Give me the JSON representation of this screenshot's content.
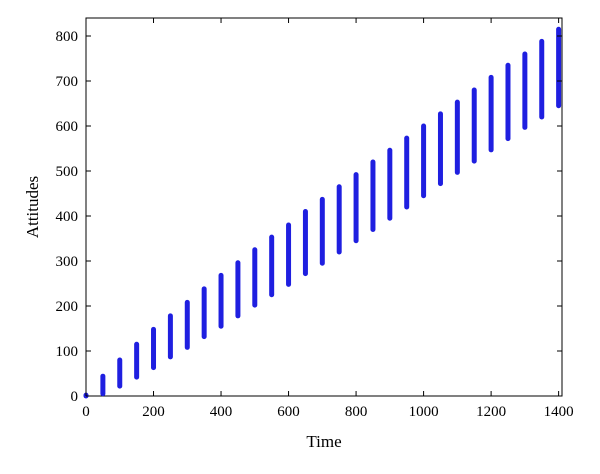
{
  "chart_data": {
    "type": "scatter",
    "xlabel": "Time",
    "ylabel": "Attitudes",
    "xlim": [
      0,
      1410
    ],
    "ylim": [
      0,
      840
    ],
    "xticks": [
      0,
      200,
      400,
      600,
      800,
      1000,
      1200,
      1400
    ],
    "yticks": [
      0,
      100,
      200,
      300,
      400,
      500,
      600,
      700,
      800
    ],
    "grid": false,
    "marker_color": "#1f1fe0",
    "series": [
      {
        "clusters": [
          {
            "x": 0,
            "y_min": 0,
            "y_max": 2
          },
          {
            "x": 50,
            "y_min": 5,
            "y_max": 44
          },
          {
            "x": 100,
            "y_min": 22,
            "y_max": 80
          },
          {
            "x": 150,
            "y_min": 42,
            "y_max": 115
          },
          {
            "x": 200,
            "y_min": 63,
            "y_max": 148
          },
          {
            "x": 250,
            "y_min": 87,
            "y_max": 178
          },
          {
            "x": 300,
            "y_min": 108,
            "y_max": 208
          },
          {
            "x": 350,
            "y_min": 132,
            "y_max": 238
          },
          {
            "x": 400,
            "y_min": 155,
            "y_max": 268
          },
          {
            "x": 450,
            "y_min": 178,
            "y_max": 296
          },
          {
            "x": 500,
            "y_min": 202,
            "y_max": 325
          },
          {
            "x": 550,
            "y_min": 225,
            "y_max": 353
          },
          {
            "x": 600,
            "y_min": 248,
            "y_max": 380
          },
          {
            "x": 650,
            "y_min": 272,
            "y_max": 410
          },
          {
            "x": 700,
            "y_min": 295,
            "y_max": 437
          },
          {
            "x": 750,
            "y_min": 320,
            "y_max": 465
          },
          {
            "x": 800,
            "y_min": 345,
            "y_max": 492
          },
          {
            "x": 850,
            "y_min": 370,
            "y_max": 520
          },
          {
            "x": 900,
            "y_min": 395,
            "y_max": 546
          },
          {
            "x": 950,
            "y_min": 420,
            "y_max": 573
          },
          {
            "x": 1000,
            "y_min": 445,
            "y_max": 600
          },
          {
            "x": 1050,
            "y_min": 472,
            "y_max": 627
          },
          {
            "x": 1100,
            "y_min": 497,
            "y_max": 653
          },
          {
            "x": 1150,
            "y_min": 522,
            "y_max": 680
          },
          {
            "x": 1200,
            "y_min": 547,
            "y_max": 708
          },
          {
            "x": 1250,
            "y_min": 572,
            "y_max": 735
          },
          {
            "x": 1300,
            "y_min": 597,
            "y_max": 760
          },
          {
            "x": 1350,
            "y_min": 620,
            "y_max": 788
          },
          {
            "x": 1400,
            "y_min": 645,
            "y_max": 815
          }
        ]
      }
    ]
  }
}
